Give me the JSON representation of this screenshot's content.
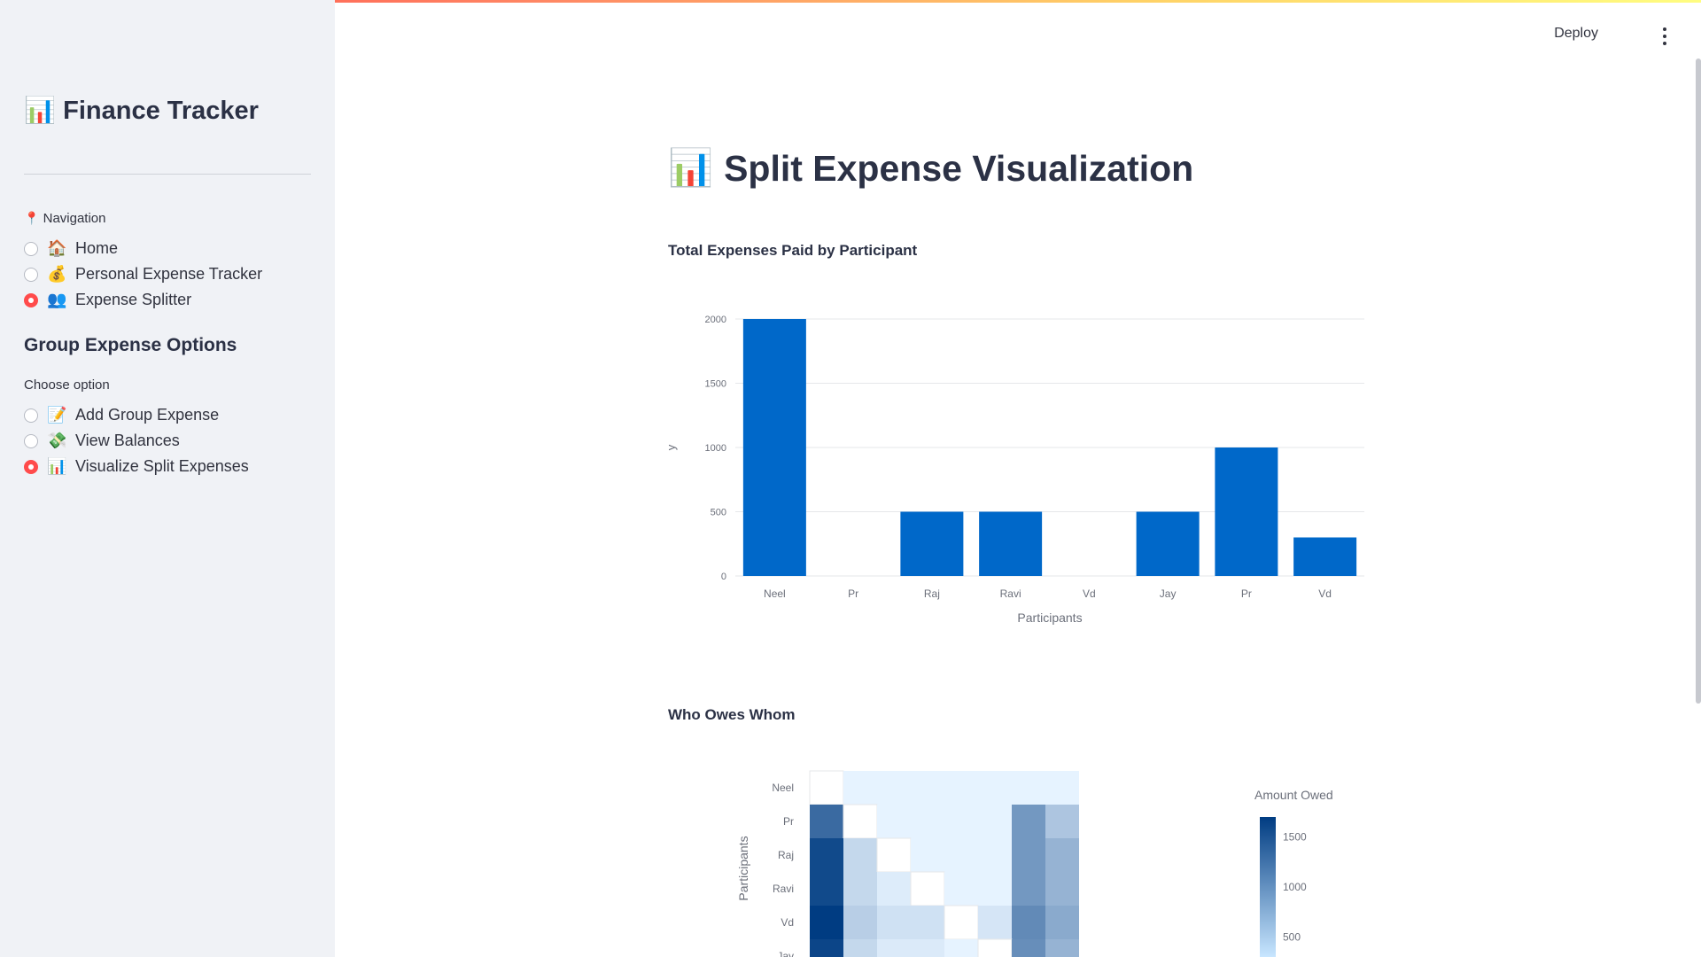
{
  "sidebar": {
    "title": "Finance Tracker",
    "title_icon": "📊",
    "nav_label": "Navigation",
    "nav_icon": "📍",
    "nav_items": [
      {
        "label": "Home",
        "icon": "🏠",
        "selected": false
      },
      {
        "label": "Personal Expense Tracker",
        "icon": "💰",
        "selected": false
      },
      {
        "label": "Expense Splitter",
        "icon": "👥",
        "selected": true
      }
    ],
    "group_heading": "Group Expense Options",
    "choose_label": "Choose option",
    "options": [
      {
        "label": "Add Group Expense",
        "icon": "📝",
        "selected": false
      },
      {
        "label": "View Balances",
        "icon": "💸",
        "selected": false
      },
      {
        "label": "Visualize Split Expenses",
        "icon": "📊",
        "selected": true
      }
    ]
  },
  "header": {
    "deploy_label": "Deploy"
  },
  "main": {
    "title": "Split Expense Visualization",
    "title_icon": "📊",
    "bar_section_title": "Total Expenses Paid by Participant",
    "heatmap_section_title": "Who Owes Whom"
  },
  "colors": {
    "accent": "#ff4b4b",
    "bar": "#0068c9",
    "sidebar_bg": "#f0f2f6"
  },
  "chart_data": [
    {
      "type": "bar",
      "categories": [
        "Neel",
        "Pr",
        "Raj",
        "Ravi",
        "Vd",
        "Jay",
        "Pr",
        "Vd"
      ],
      "values": [
        2000,
        0,
        500,
        500,
        0,
        500,
        1000,
        300
      ],
      "xlabel": "Participants",
      "ylabel": "y",
      "ylim": [
        0,
        2000
      ],
      "yticks": [
        0,
        500,
        1000,
        1500,
        2000
      ],
      "grid": true
    },
    {
      "type": "heatmap",
      "rows": [
        "Neel",
        "Pr",
        "Raj",
        "Ravi",
        "Vd",
        "Jay"
      ],
      "columns": 8,
      "values": [
        [
          null,
          0,
          0,
          0,
          0,
          0,
          0,
          0
        ],
        [
          1500,
          null,
          0,
          0,
          0,
          0,
          1000,
          500
        ],
        [
          1850,
          300,
          null,
          0,
          0,
          0,
          1000,
          700
        ],
        [
          1850,
          300,
          80,
          null,
          0,
          0,
          1000,
          700
        ],
        [
          2000,
          400,
          200,
          200,
          null,
          150,
          1150,
          800
        ],
        [
          1900,
          300,
          100,
          100,
          0,
          null,
          1100,
          700
        ]
      ],
      "ylabel": "Participants",
      "colorbar_title": "Amount Owed",
      "colorbar_ticks": [
        500,
        1000,
        1500
      ]
    }
  ]
}
